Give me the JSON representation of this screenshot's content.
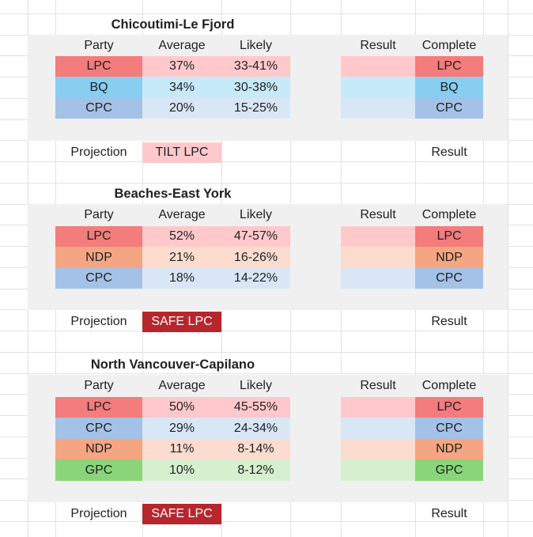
{
  "columns": {
    "party": "Party",
    "average": "Average",
    "likely": "Likely",
    "result": "Result",
    "complete": "Complete"
  },
  "projection_label": "Projection",
  "result_label": "Result",
  "ridings": [
    {
      "name": "Chicoutimi-Le Fjord",
      "rows": [
        {
          "party": "LPC",
          "average": "37%",
          "likely": "33-41%",
          "complete": "LPC"
        },
        {
          "party": "BQ",
          "average": "34%",
          "likely": "30-38%",
          "complete": "BQ"
        },
        {
          "party": "CPC",
          "average": "20%",
          "likely": "15-25%",
          "complete": "CPC"
        }
      ],
      "projection": "TILT LPC"
    },
    {
      "name": "Beaches-East York",
      "rows": [
        {
          "party": "LPC",
          "average": "52%",
          "likely": "47-57%",
          "complete": "LPC"
        },
        {
          "party": "NDP",
          "average": "21%",
          "likely": "16-26%",
          "complete": "NDP"
        },
        {
          "party": "CPC",
          "average": "18%",
          "likely": "14-22%",
          "complete": "CPC"
        }
      ],
      "projection": "SAFE LPC"
    },
    {
      "name": "North Vancouver-Capilano",
      "rows": [
        {
          "party": "LPC",
          "average": "50%",
          "likely": "45-55%",
          "complete": "LPC"
        },
        {
          "party": "CPC",
          "average": "29%",
          "likely": "24-34%",
          "complete": "CPC"
        },
        {
          "party": "NDP",
          "average": "11%",
          "likely": "8-14%",
          "complete": "NDP"
        },
        {
          "party": "GPC",
          "average": "10%",
          "likely": "8-12%",
          "complete": "GPC"
        }
      ],
      "projection": "SAFE LPC"
    }
  ],
  "colors": {
    "LPC": {
      "strong": "#f47c7c",
      "light": "#ffc9cc"
    },
    "BQ": {
      "strong": "#87cef0",
      "light": "#c7eaf8"
    },
    "CPC": {
      "strong": "#a4c2e8",
      "light": "#d9e6f6"
    },
    "NDP": {
      "strong": "#f4a582",
      "light": "#fbdcce"
    },
    "GPC": {
      "strong": "#8ad579",
      "light": "#d6f0cf"
    },
    "tilt_bg": "#ffc9cc",
    "tilt_fg": "#202124",
    "safe_bg": "#b5272d",
    "safe_fg": "#ffffff",
    "block_bg": "#f0f0f1",
    "gridline": "#e2e2e2"
  }
}
